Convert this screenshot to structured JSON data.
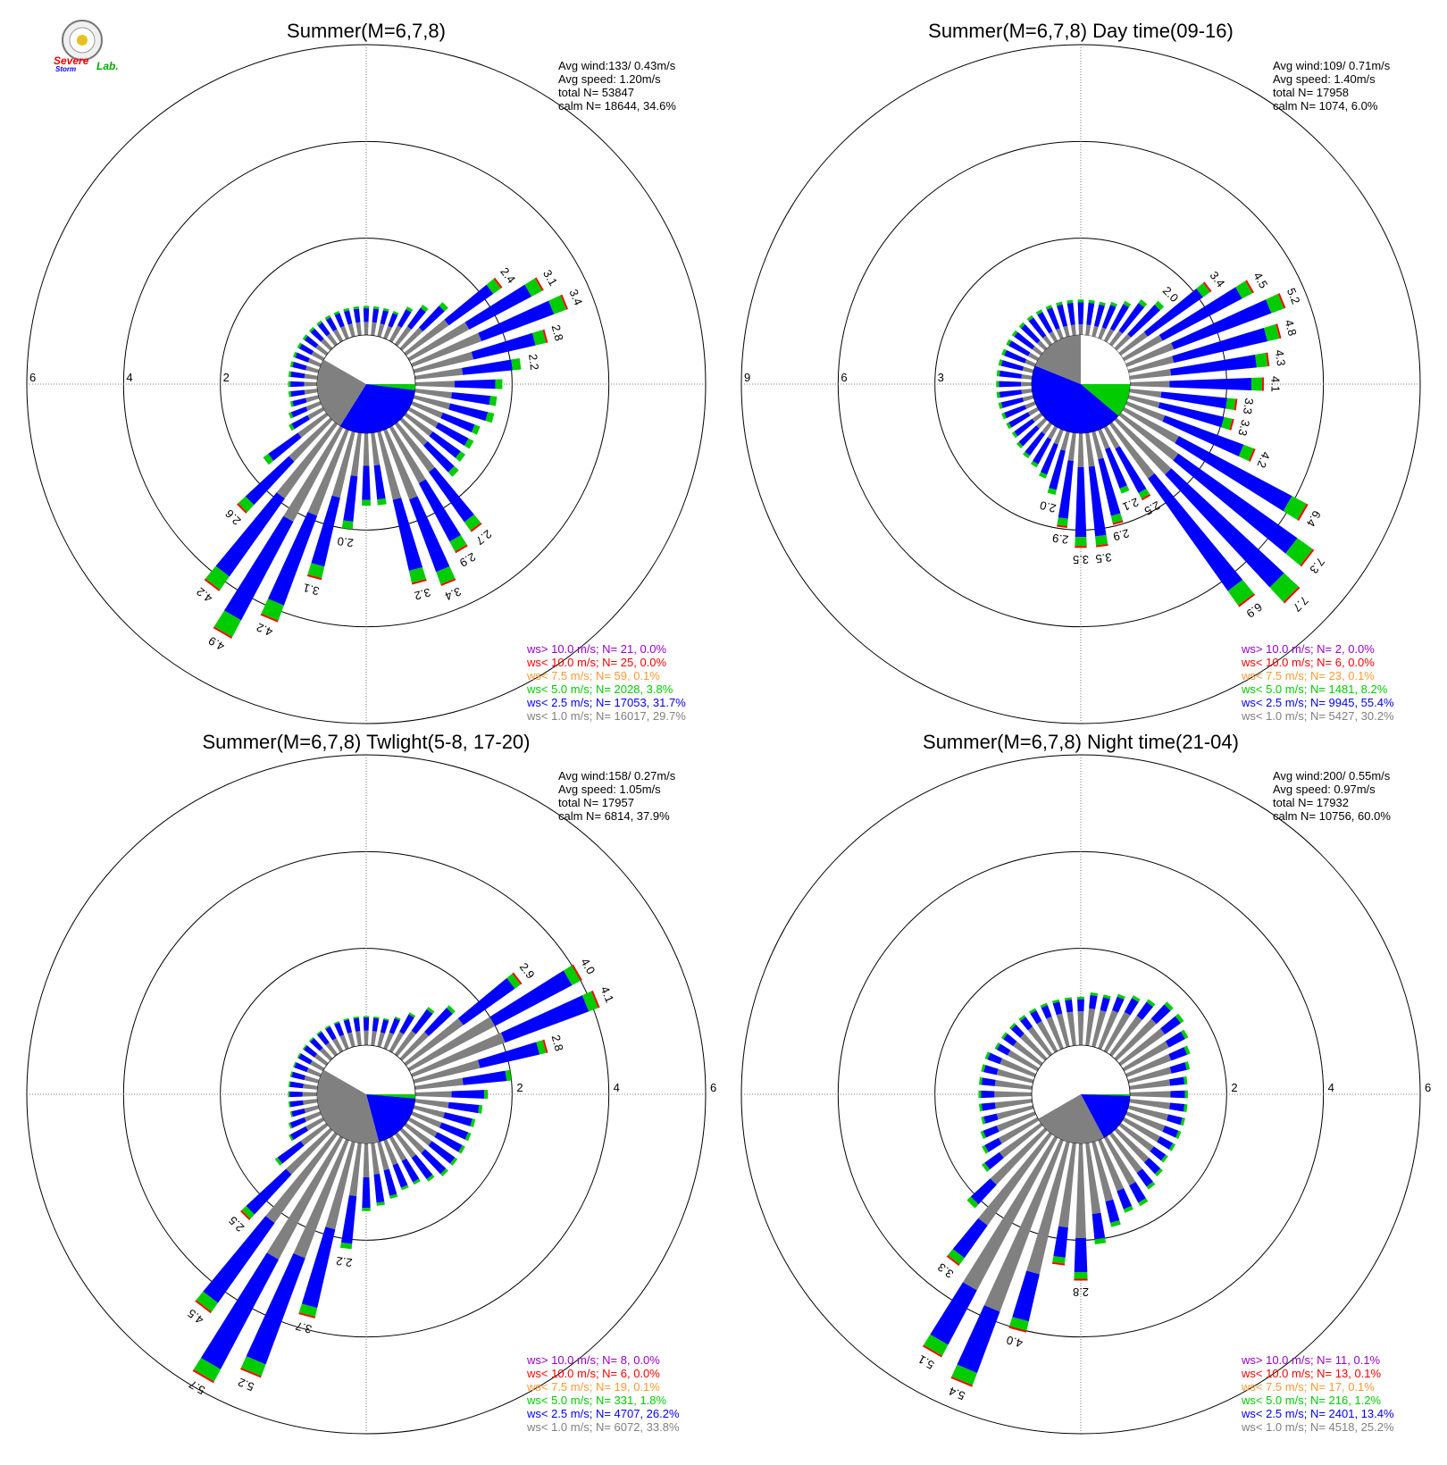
{
  "logo": {
    "line1": "Severe",
    "line2": "Storm",
    "line3": "Lab."
  },
  "colors": {
    "ws_gt10": "#9900cc",
    "ws_lt10": "#ff0000",
    "ws_lt7_5": "#ff9933",
    "ws_lt5": "#00cc00",
    "ws_lt2_5": "#0000ff",
    "ws_lt1": "#808080"
  },
  "chart_data": [
    {
      "type": "polar-bar",
      "title": "Summer(M=6,7,8)",
      "stats": [
        "Avg wind:133/ 0.43m/s",
        "Avg speed: 1.20m/s",
        "total N=       53847",
        "calm N=  18644,  34.6%"
      ],
      "ring_labels": [
        "2",
        "4",
        "6"
      ],
      "rings": [
        2,
        4,
        6
      ],
      "legend": [
        {
          "text": "ws> 10.0 m/s; N=    21,  0.0%",
          "color": "#9900cc"
        },
        {
          "text": "ws< 10.0 m/s; N=    25,  0.0%",
          "color": "#ff0000"
        },
        {
          "text": "ws<  7.5 m/s; N=    59,  0.1%",
          "color": "#ff9933"
        },
        {
          "text": "ws<  5.0 m/s; N=  2028,  3.8%",
          "color": "#00cc00"
        },
        {
          "text": "ws<  2.5 m/s; N= 17053, 31.7%",
          "color": "#0000ff"
        },
        {
          "text": "ws<  1.0 m/s; N= 16017, 29.7%",
          "color": "#808080"
        }
      ],
      "totals": [
        0.6,
        0.6,
        0.6,
        0.6,
        0.8,
        1.0,
        1.3,
        2.4,
        3.1,
        3.4,
        2.8,
        2.2,
        1.8,
        1.7,
        1.7,
        1.5,
        1.5,
        1.5,
        1.6,
        2.7,
        2.9,
        3.4,
        3.2,
        1.5,
        1.5,
        2.0,
        3.1,
        4.2,
        4.9,
        4.2,
        2.6,
        1.6,
        0.8,
        0.7,
        0.6,
        0.6,
        0.6,
        0.6,
        0.6,
        0.6,
        0.6,
        0.6,
        0.6,
        0.6,
        0.6,
        0.6,
        0.6,
        0.6
      ],
      "gray_fraction": 0.45,
      "green_fraction": 0.08,
      "labels": [
        {
          "bin": 7,
          "text": "2.4"
        },
        {
          "bin": 8,
          "text": "3.1"
        },
        {
          "bin": 9,
          "text": "3.4"
        },
        {
          "bin": 10,
          "text": "2.8"
        },
        {
          "bin": 11,
          "text": "2.2"
        },
        {
          "bin": 19,
          "text": "2.7"
        },
        {
          "bin": 20,
          "text": "2.9"
        },
        {
          "bin": 21,
          "text": "3.4"
        },
        {
          "bin": 22,
          "text": "3.2"
        },
        {
          "bin": 25,
          "text": "2.0"
        },
        {
          "bin": 26,
          "text": "3.1"
        },
        {
          "bin": 27,
          "text": "4.2"
        },
        {
          "bin": 28,
          "text": "4.9"
        },
        {
          "bin": 29,
          "text": "4.2"
        },
        {
          "bin": 30,
          "text": "2.6"
        }
      ],
      "calm_sectors": [
        {
          "from": 90,
          "to": 97,
          "color": "#00cc00"
        },
        {
          "from": 97,
          "to": 212,
          "color": "#0000ff"
        },
        {
          "from": 212,
          "to": 300,
          "color": "#808080"
        }
      ]
    },
    {
      "type": "polar-bar",
      "title": "Summer(M=6,7,8) Day time(09-16)",
      "stats": [
        "Avg wind:109/ 0.71m/s",
        "Avg speed: 1.40m/s",
        "total N=       17958",
        "calm N=  1074,   6.0%"
      ],
      "ring_labels": [
        "3",
        "6",
        "9"
      ],
      "rings": [
        3,
        6,
        9
      ],
      "legend": [
        {
          "text": "ws> 10.0 m/s; N=     2,  0.0%",
          "color": "#9900cc"
        },
        {
          "text": "ws< 10.0 m/s; N=     6,  0.0%",
          "color": "#ff0000"
        },
        {
          "text": "ws<  7.5 m/s; N=    23,  0.1%",
          "color": "#ff9933"
        },
        {
          "text": "ws<  5.0 m/s; N=  1481,  8.2%",
          "color": "#00cc00"
        },
        {
          "text": "ws<  2.5 m/s; N=  9945, 55.4%",
          "color": "#0000ff"
        },
        {
          "text": "ws<  1.0 m/s; N=  5427, 30.2%",
          "color": "#808080"
        }
      ],
      "totals": [
        1.1,
        1.1,
        1.1,
        1.2,
        1.4,
        1.7,
        2.0,
        3.4,
        4.5,
        5.2,
        4.8,
        4.3,
        4.1,
        3.3,
        3.3,
        4.2,
        6.4,
        7.3,
        7.7,
        6.9,
        2.5,
        2.1,
        2.9,
        3.5,
        3.5,
        2.9,
        2.0,
        1.6,
        1.4,
        1.3,
        1.2,
        1.1,
        1.1,
        1.1,
        1.1,
        1.1,
        1.1,
        1.1,
        1.1,
        1.1,
        1.1,
        1.1,
        1.1,
        1.1,
        1.1,
        1.1,
        1.1,
        1.1
      ],
      "gray_fraction": 0.3,
      "green_fraction": 0.08,
      "bins_used": 24,
      "labels": [
        {
          "bin": 6,
          "text": "2.0"
        },
        {
          "bin": 7,
          "text": "3.4"
        },
        {
          "bin": 8,
          "text": "4.5"
        },
        {
          "bin": 9,
          "text": "5.2"
        },
        {
          "bin": 10,
          "text": "4.8"
        },
        {
          "bin": 11,
          "text": "4.3"
        },
        {
          "bin": 12,
          "text": "4.1"
        },
        {
          "bin": 13,
          "text": "3.3"
        },
        {
          "bin": 14,
          "text": "3.3"
        },
        {
          "bin": 15,
          "text": "4.2"
        },
        {
          "bin": 16,
          "text": "6.4"
        },
        {
          "bin": 17,
          "text": "7.3"
        },
        {
          "bin": 18,
          "text": "7.7"
        },
        {
          "bin": 19,
          "text": "6.9"
        },
        {
          "bin": 20,
          "text": "2.5"
        },
        {
          "bin": 21,
          "text": "2.1"
        },
        {
          "bin": 22,
          "text": "2.9"
        },
        {
          "bin": 23,
          "text": "3.5"
        },
        {
          "bin": 24,
          "text": "3.5"
        },
        {
          "bin": 25,
          "text": "2.9"
        },
        {
          "bin": 26,
          "text": "2.0"
        }
      ],
      "calm_sectors": [
        {
          "from": 0,
          "to": 60,
          "color": "#ffffff"
        },
        {
          "from": 60,
          "to": 90,
          "color": "#ffffff"
        },
        {
          "from": 90,
          "to": 130,
          "color": "#00cc00"
        },
        {
          "from": 130,
          "to": 292,
          "color": "#0000ff"
        },
        {
          "from": 292,
          "to": 360,
          "color": "#808080"
        }
      ]
    },
    {
      "type": "polar-bar",
      "title": "Summer(M=6,7,8) Twlight(5-8, 17-20)",
      "stats": [
        "Avg wind:158/ 0.27m/s",
        "Avg speed: 1.05m/s",
        "total N=       17957",
        "calm N=  6814,  37.9%"
      ],
      "ring_labels": [
        "2",
        "4",
        "6"
      ],
      "rings": [
        2,
        4,
        6
      ],
      "legend": [
        {
          "text": "ws> 10.0 m/s; N=     8,  0.0%",
          "color": "#9900cc"
        },
        {
          "text": "ws< 10.0 m/s; N=     6,  0.0%",
          "color": "#ff0000"
        },
        {
          "text": "ws<  7.5 m/s; N=    19,  0.1%",
          "color": "#ff9933"
        },
        {
          "text": "ws<  5.0 m/s; N=   331,  1.8%",
          "color": "#00cc00"
        },
        {
          "text": "ws<  2.5 m/s; N=  4707, 26.2%",
          "color": "#0000ff"
        },
        {
          "text": "ws<  1.0 m/s; N=  6072, 33.8%",
          "color": "#808080"
        }
      ],
      "totals": [
        0.6,
        0.6,
        0.6,
        0.7,
        0.9,
        1.2,
        1.5,
        2.9,
        4.0,
        4.1,
        2.8,
        2.0,
        1.5,
        1.4,
        1.3,
        1.3,
        1.3,
        1.3,
        1.3,
        1.2,
        1.1,
        1.1,
        1.2,
        1.3,
        1.4,
        2.2,
        3.7,
        5.2,
        5.7,
        4.5,
        2.5,
        1.3,
        0.8,
        0.7,
        0.6,
        0.6,
        0.6,
        0.6,
        0.6,
        0.6,
        0.6,
        0.6,
        0.6,
        0.6,
        0.6,
        0.6,
        0.6,
        0.6
      ],
      "gray_fraction": 0.5,
      "green_fraction": 0.05,
      "labels": [
        {
          "bin": 7,
          "text": "2.9"
        },
        {
          "bin": 8,
          "text": "4.0"
        },
        {
          "bin": 9,
          "text": "4.1"
        },
        {
          "bin": 10,
          "text": "2.8"
        },
        {
          "bin": 25,
          "text": "2.2"
        },
        {
          "bin": 26,
          "text": "3.7"
        },
        {
          "bin": 27,
          "text": "5.2"
        },
        {
          "bin": 28,
          "text": "5.7"
        },
        {
          "bin": 29,
          "text": "4.5"
        },
        {
          "bin": 30,
          "text": "2.5"
        }
      ],
      "calm_sectors": [
        {
          "from": 90,
          "to": 95,
          "color": "#00cc00"
        },
        {
          "from": 95,
          "to": 165,
          "color": "#0000ff"
        },
        {
          "from": 165,
          "to": 300,
          "color": "#808080"
        }
      ]
    },
    {
      "type": "polar-bar",
      "title": "Summer(M=6,7,8) Night time(21-04)",
      "stats": [
        "Avg wind:200/ 0.55m/s",
        "Avg speed: 0.97m/s",
        "total N=       17932",
        "calm N=  10756,  60.0%"
      ],
      "ring_labels": [
        "2",
        "4",
        "6"
      ],
      "rings": [
        2,
        4,
        6
      ],
      "legend": [
        {
          "text": "ws> 10.0 m/s; N=    11,  0.1%",
          "color": "#9900cc"
        },
        {
          "text": "ws< 10.0 m/s; N=    13,  0.1%",
          "color": "#ff0000"
        },
        {
          "text": "ws<  7.5 m/s; N=    17,  0.1%",
          "color": "#ff9933"
        },
        {
          "text": "ws<  5.0 m/s; N=   216,  1.2%",
          "color": "#00cc00"
        },
        {
          "text": "ws<  2.5 m/s; N=  2401, 13.4%",
          "color": "#0000ff"
        },
        {
          "text": "ws<  1.0 m/s; N=  4518, 25.2%",
          "color": "#808080"
        }
      ],
      "totals": [
        1.0,
        1.1,
        1.1,
        1.2,
        1.3,
        1.4,
        1.6,
        1.6,
        1.5,
        1.4,
        1.3,
        1.2,
        1.2,
        1.2,
        1.2,
        1.2,
        1.2,
        1.2,
        1.3,
        1.4,
        1.6,
        1.6,
        1.8,
        2.1,
        2.8,
        2.5,
        4.0,
        5.4,
        5.1,
        3.3,
        2.2,
        1.5,
        1.3,
        1.2,
        1.1,
        1.1,
        1.1,
        1.1,
        1.1,
        1.1,
        1.0,
        1.0,
        1.0,
        1.0,
        1.0,
        1.0,
        1.0,
        1.0
      ],
      "gray_fraction": 0.7,
      "green_fraction": 0.05,
      "labels": [
        {
          "bin": 24,
          "text": "2.8"
        },
        {
          "bin": 26,
          "text": "4.0"
        },
        {
          "bin": 27,
          "text": "5.4"
        },
        {
          "bin": 28,
          "text": "5.1"
        },
        {
          "bin": 29,
          "text": "3.3"
        }
      ],
      "calm_sectors": [
        {
          "from": 90,
          "to": 92,
          "color": "#00cc00"
        },
        {
          "from": 92,
          "to": 152,
          "color": "#0000ff"
        },
        {
          "from": 152,
          "to": 240,
          "color": "#808080"
        }
      ]
    }
  ]
}
